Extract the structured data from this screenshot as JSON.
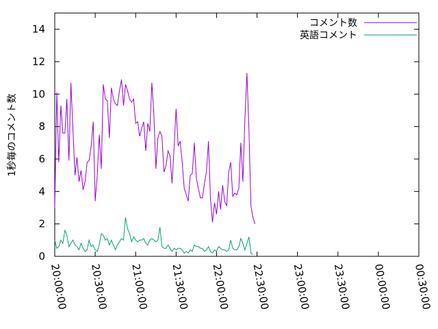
{
  "chart_data": {
    "type": "line",
    "title": "",
    "xlabel": "",
    "ylabel": "1秒毎のコメント数",
    "xlim": [
      "20:00:00",
      "00:30:00"
    ],
    "ylim": [
      0,
      15
    ],
    "x_ticks": [
      "20:00:00",
      "20:30:00",
      "21:00:00",
      "21:30:00",
      "22:00:00",
      "22:30:00",
      "23:00:00",
      "23:30:00",
      "00:00:00",
      "00:30:00"
    ],
    "y_ticks": [
      0,
      2,
      4,
      6,
      8,
      10,
      12,
      14
    ],
    "grid": false,
    "legend_position": "top-right",
    "colors": {
      "series1": "#9400d3",
      "series2": "#009e73"
    },
    "series": [
      {
        "name": "コメント数",
        "color": "#9400d3",
        "points": [
          [
            "20:00:00",
            3.0
          ],
          [
            "20:01:30",
            10.1
          ],
          [
            "20:03:00",
            5.8
          ],
          [
            "20:04:30",
            9.3
          ],
          [
            "20:06:00",
            7.6
          ],
          [
            "20:07:30",
            7.6
          ],
          [
            "20:09:00",
            9.7
          ],
          [
            "20:10:30",
            5.9
          ],
          [
            "20:12:00",
            10.7
          ],
          [
            "20:13:30",
            7.8
          ],
          [
            "20:15:00",
            5.0
          ],
          [
            "20:16:30",
            6.1
          ],
          [
            "20:18:00",
            4.6
          ],
          [
            "20:19:30",
            5.3
          ],
          [
            "20:21:00",
            4.1
          ],
          [
            "20:22:30",
            4.6
          ],
          [
            "20:24:00",
            5.8
          ],
          [
            "20:25:30",
            5.9
          ],
          [
            "20:27:00",
            6.8
          ],
          [
            "20:28:30",
            8.3
          ],
          [
            "20:30:00",
            3.4
          ],
          [
            "20:31:30",
            5.0
          ],
          [
            "20:33:00",
            7.5
          ],
          [
            "20:34:30",
            5.4
          ],
          [
            "20:36:00",
            10.6
          ],
          [
            "20:37:30",
            9.7
          ],
          [
            "20:39:00",
            9.6
          ],
          [
            "20:40:30",
            7.3
          ],
          [
            "20:42:00",
            10.4
          ],
          [
            "20:43:30",
            9.7
          ],
          [
            "20:45:00",
            9.4
          ],
          [
            "20:46:30",
            9.3
          ],
          [
            "20:48:00",
            10.2
          ],
          [
            "20:49:30",
            10.9
          ],
          [
            "20:51:00",
            9.3
          ],
          [
            "20:52:30",
            10.6
          ],
          [
            "20:54:00",
            10.2
          ],
          [
            "20:55:30",
            9.7
          ],
          [
            "20:57:00",
            9.5
          ],
          [
            "20:58:30",
            9.7
          ],
          [
            "21:00:00",
            8.2
          ],
          [
            "21:01:30",
            8.3
          ],
          [
            "21:03:00",
            7.4
          ],
          [
            "21:04:30",
            7.9
          ],
          [
            "21:06:00",
            8.3
          ],
          [
            "21:07:30",
            6.5
          ],
          [
            "21:09:00",
            8.2
          ],
          [
            "21:10:30",
            7.7
          ],
          [
            "21:12:00",
            10.7
          ],
          [
            "21:13:30",
            8.8
          ],
          [
            "21:15:00",
            5.4
          ],
          [
            "21:16:30",
            7.3
          ],
          [
            "21:18:00",
            7.7
          ],
          [
            "21:19:30",
            7.4
          ],
          [
            "21:21:00",
            5.2
          ],
          [
            "21:22:30",
            5.6
          ],
          [
            "21:24:00",
            6.5
          ],
          [
            "21:25:30",
            6.2
          ],
          [
            "21:27:00",
            4.5
          ],
          [
            "21:28:30",
            6.7
          ],
          [
            "21:30:00",
            9.1
          ],
          [
            "21:31:30",
            6.8
          ],
          [
            "21:33:00",
            7.1
          ],
          [
            "21:34:30",
            5.8
          ],
          [
            "21:36:00",
            4.2
          ],
          [
            "21:37:30",
            3.8
          ],
          [
            "21:39:00",
            3.4
          ],
          [
            "21:40:30",
            5.0
          ],
          [
            "21:42:00",
            5.1
          ],
          [
            "21:43:30",
            7.0
          ],
          [
            "21:45:00",
            4.8
          ],
          [
            "21:46:30",
            4.2
          ],
          [
            "21:48:00",
            3.6
          ],
          [
            "21:49:30",
            3.6
          ],
          [
            "21:51:00",
            4.5
          ],
          [
            "21:52:30",
            5.2
          ],
          [
            "21:54:00",
            7.1
          ],
          [
            "21:55:30",
            3.5
          ],
          [
            "21:57:00",
            2.1
          ],
          [
            "21:58:30",
            3.3
          ],
          [
            "22:00:00",
            2.6
          ],
          [
            "22:01:30",
            4.0
          ],
          [
            "22:03:00",
            2.9
          ],
          [
            "22:04:30",
            4.4
          ],
          [
            "22:06:00",
            3.4
          ],
          [
            "22:07:30",
            3.1
          ],
          [
            "22:09:00",
            5.2
          ],
          [
            "22:10:30",
            5.8
          ],
          [
            "22:12:00",
            3.7
          ],
          [
            "22:13:30",
            3.9
          ],
          [
            "22:15:00",
            3.8
          ],
          [
            "22:16:30",
            4.2
          ],
          [
            "22:18:00",
            7.0
          ],
          [
            "22:19:30",
            4.6
          ],
          [
            "22:21:00",
            8.4
          ],
          [
            "22:22:30",
            11.3
          ],
          [
            "22:24:00",
            7.9
          ],
          [
            "22:25:30",
            3.1
          ],
          [
            "22:27:00",
            2.4
          ],
          [
            "22:28:30",
            2.0
          ]
        ]
      },
      {
        "name": "英語コメント",
        "color": "#009e73",
        "points": [
          [
            "20:00:00",
            1.0
          ],
          [
            "20:01:30",
            0.5
          ],
          [
            "20:03:00",
            0.6
          ],
          [
            "20:04:30",
            1.0
          ],
          [
            "20:06:00",
            0.8
          ],
          [
            "20:07:30",
            1.6
          ],
          [
            "20:09:00",
            1.3
          ],
          [
            "20:10:30",
            0.6
          ],
          [
            "20:12:00",
            0.8
          ],
          [
            "20:13:30",
            1.0
          ],
          [
            "20:15:00",
            0.7
          ],
          [
            "20:16:30",
            0.6
          ],
          [
            "20:18:00",
            0.4
          ],
          [
            "20:19:30",
            0.8
          ],
          [
            "20:21:00",
            0.5
          ],
          [
            "20:22:30",
            0.3
          ],
          [
            "20:24:00",
            0.4
          ],
          [
            "20:25:30",
            1.0
          ],
          [
            "20:27:00",
            0.6
          ],
          [
            "20:28:30",
            0.7
          ],
          [
            "20:30:00",
            0.4
          ],
          [
            "20:31:30",
            0.3
          ],
          [
            "20:33:00",
            0.7
          ],
          [
            "20:34:30",
            1.4
          ],
          [
            "20:36:00",
            1.3
          ],
          [
            "20:37:30",
            1.0
          ],
          [
            "20:39:00",
            1.1
          ],
          [
            "20:40:30",
            0.7
          ],
          [
            "20:42:00",
            1.0
          ],
          [
            "20:43:30",
            0.7
          ],
          [
            "20:45:00",
            0.4
          ],
          [
            "20:46:30",
            0.7
          ],
          [
            "20:48:00",
            0.9
          ],
          [
            "20:49:30",
            1.1
          ],
          [
            "20:51:00",
            1.0
          ],
          [
            "20:52:30",
            2.4
          ],
          [
            "20:54:00",
            1.7
          ],
          [
            "20:55:30",
            1.4
          ],
          [
            "20:57:00",
            0.9
          ],
          [
            "20:58:30",
            1.2
          ],
          [
            "21:00:00",
            1.0
          ],
          [
            "21:01:30",
            0.9
          ],
          [
            "21:03:00",
            1.0
          ],
          [
            "21:04:30",
            1.0
          ],
          [
            "21:06:00",
            1.1
          ],
          [
            "21:07:30",
            0.8
          ],
          [
            "21:09:00",
            0.7
          ],
          [
            "21:10:30",
            1.0
          ],
          [
            "21:12:00",
            1.1
          ],
          [
            "21:13:30",
            1.0
          ],
          [
            "21:15:00",
            0.9
          ],
          [
            "21:16:30",
            1.0
          ],
          [
            "21:18:00",
            1.8
          ],
          [
            "21:19:30",
            0.6
          ],
          [
            "21:21:00",
            0.5
          ],
          [
            "21:22:30",
            0.5
          ],
          [
            "21:24:00",
            0.7
          ],
          [
            "21:25:30",
            0.5
          ],
          [
            "21:27:00",
            0.3
          ],
          [
            "21:28:30",
            0.5
          ],
          [
            "21:30:00",
            0.4
          ],
          [
            "21:31:30",
            0.5
          ],
          [
            "21:33:00",
            0.5
          ],
          [
            "21:34:30",
            0.4
          ],
          [
            "21:36:00",
            0.2
          ],
          [
            "21:37:30",
            0.3
          ],
          [
            "21:39:00",
            0.2
          ],
          [
            "21:40:30",
            0.4
          ],
          [
            "21:42:00",
            0.3
          ],
          [
            "21:43:30",
            0.7
          ],
          [
            "21:45:00",
            0.6
          ],
          [
            "21:46:30",
            0.6
          ],
          [
            "21:48:00",
            0.5
          ],
          [
            "21:49:30",
            0.5
          ],
          [
            "21:51:00",
            0.3
          ],
          [
            "21:52:30",
            0.4
          ],
          [
            "21:54:00",
            0.6
          ],
          [
            "21:55:30",
            0.3
          ],
          [
            "21:57:00",
            0.2
          ],
          [
            "21:58:30",
            0.4
          ],
          [
            "22:00:00",
            0.3
          ],
          [
            "22:01:30",
            0.6
          ],
          [
            "22:03:00",
            0.5
          ],
          [
            "22:04:30",
            0.4
          ],
          [
            "22:06:00",
            0.4
          ],
          [
            "22:07:30",
            0.3
          ],
          [
            "22:09:00",
            0.4
          ],
          [
            "22:10:30",
            1.0
          ],
          [
            "22:12:00",
            0.5
          ],
          [
            "22:13:30",
            0.4
          ],
          [
            "22:15:00",
            0.4
          ],
          [
            "22:16:30",
            0.6
          ],
          [
            "22:18:00",
            1.1
          ],
          [
            "22:19:30",
            0.8
          ],
          [
            "22:21:00",
            0.4
          ],
          [
            "22:22:30",
            0.8
          ],
          [
            "22:24:00",
            1.2
          ],
          [
            "22:25:30",
            0.2
          ],
          [
            "22:27:00",
            0.1
          ]
        ]
      }
    ]
  }
}
